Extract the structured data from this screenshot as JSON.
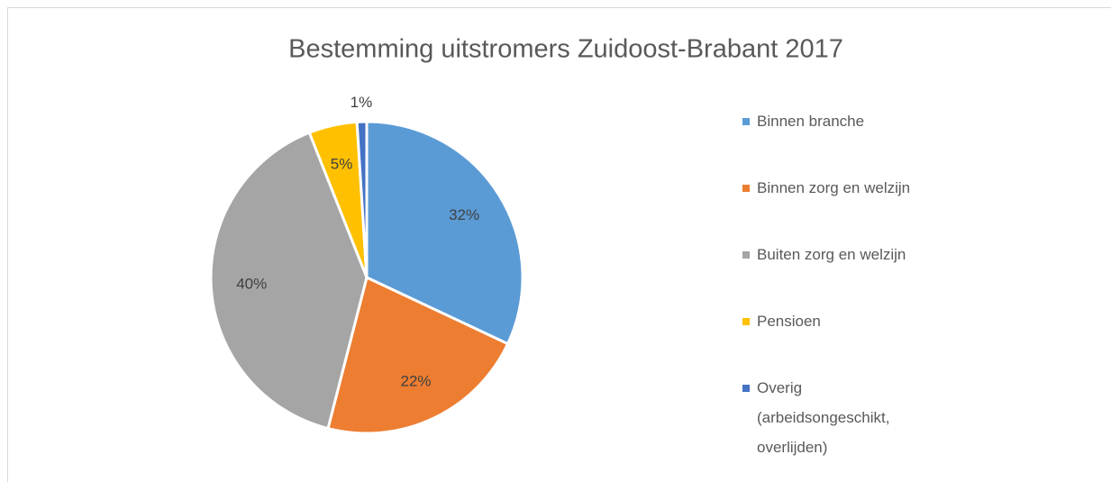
{
  "chart_data": {
    "type": "pie",
    "title": "Bestemming uitstromers Zuidoost-Brabant 2017",
    "categories": [
      "Binnen branche",
      "Binnen zorg en welzijn",
      "Buiten zorg en welzijn",
      "Pensioen",
      "Overig (arbeidsongeschikt, overlijden)"
    ],
    "values": [
      32,
      22,
      40,
      5,
      1
    ],
    "value_labels": [
      "32%",
      "22%",
      "40%",
      "5%",
      "1%"
    ],
    "colors": [
      "#5b9bd5",
      "#ed7d31",
      "#a5a5a5",
      "#ffc000",
      "#4472c4"
    ],
    "legend": "right"
  }
}
